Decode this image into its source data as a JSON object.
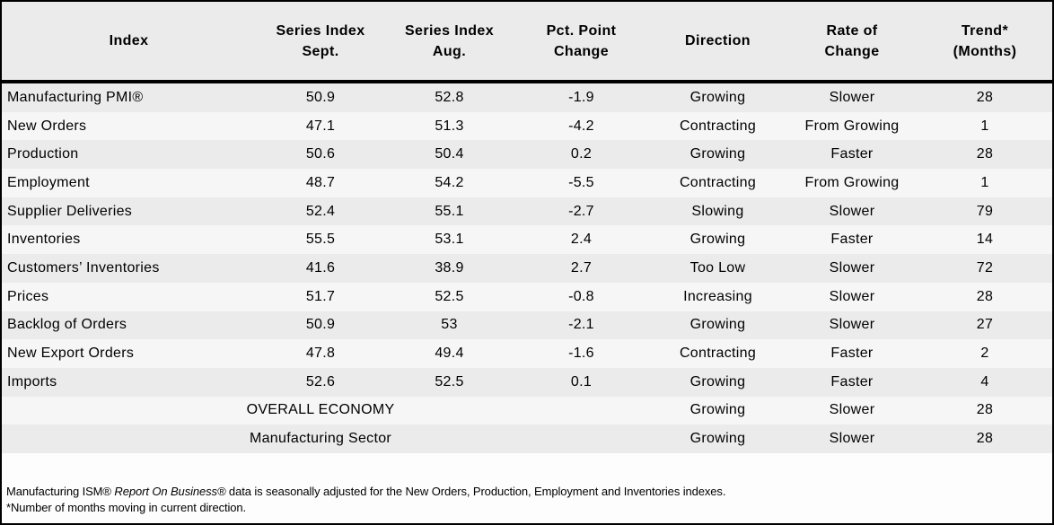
{
  "chart_data": {
    "type": "table",
    "columns": [
      {
        "id": "index",
        "line1": "Index",
        "line2": ""
      },
      {
        "id": "sept",
        "line1": "Series Index",
        "line2": "Sept."
      },
      {
        "id": "aug",
        "line1": "Series Index",
        "line2": "Aug."
      },
      {
        "id": "change",
        "line1": "Pct. Point",
        "line2": "Change"
      },
      {
        "id": "direction",
        "line1": "Direction",
        "line2": ""
      },
      {
        "id": "rate",
        "line1": "Rate of",
        "line2": "Change"
      },
      {
        "id": "trend",
        "line1": "Trend*",
        "line2": "(Months)"
      }
    ],
    "rows": [
      {
        "index": "Manufacturing PMI®",
        "sept": "50.9",
        "aug": "52.8",
        "change": "-1.9",
        "direction": "Growing",
        "rate": "Slower",
        "trend": "28"
      },
      {
        "index": "New Orders",
        "sept": "47.1",
        "aug": "51.3",
        "change": "-4.2",
        "direction": "Contracting",
        "rate": "From Growing",
        "trend": "1"
      },
      {
        "index": "Production",
        "sept": "50.6",
        "aug": "50.4",
        "change": "0.2",
        "direction": "Growing",
        "rate": "Faster",
        "trend": "28"
      },
      {
        "index": "Employment",
        "sept": "48.7",
        "aug": "54.2",
        "change": "-5.5",
        "direction": "Contracting",
        "rate": "From Growing",
        "trend": "1"
      },
      {
        "index": "Supplier Deliveries",
        "sept": "52.4",
        "aug": "55.1",
        "change": "-2.7",
        "direction": "Slowing",
        "rate": "Slower",
        "trend": "79"
      },
      {
        "index": "Inventories",
        "sept": "55.5",
        "aug": "53.1",
        "change": "2.4",
        "direction": "Growing",
        "rate": "Faster",
        "trend": "14"
      },
      {
        "index": "Customers’ Inventories",
        "sept": "41.6",
        "aug": "38.9",
        "change": "2.7",
        "direction": "Too Low",
        "rate": "Slower",
        "trend": "72"
      },
      {
        "index": "Prices",
        "sept": "51.7",
        "aug": "52.5",
        "change": "-0.8",
        "direction": "Increasing",
        "rate": "Slower",
        "trend": "28"
      },
      {
        "index": "Backlog of Orders",
        "sept": "50.9",
        "aug": "53",
        "change": "-2.1",
        "direction": "Growing",
        "rate": "Slower",
        "trend": "27"
      },
      {
        "index": "New Export Orders",
        "sept": "47.8",
        "aug": "49.4",
        "change": "-1.6",
        "direction": "Contracting",
        "rate": "Faster",
        "trend": "2"
      },
      {
        "index": "Imports",
        "sept": "52.6",
        "aug": "52.5",
        "change": "0.1",
        "direction": "Growing",
        "rate": "Faster",
        "trend": "4"
      }
    ],
    "summary_rows": [
      {
        "label": "OVERALL ECONOMY",
        "direction": "Growing",
        "rate": "Slower",
        "trend": "28"
      },
      {
        "label": "Manufacturing Sector",
        "direction": "Growing",
        "rate": "Slower",
        "trend": "28"
      }
    ],
    "footnotes": {
      "line1_prefix": "Manufacturing ISM® ",
      "line1_italic": "Report On Business®",
      "line1_suffix": "  data is seasonally adjusted for the New Orders, Production, Employment and Inventories indexes.",
      "line2": "*Number of months moving in current direction."
    },
    "colors": {
      "border": "#000000",
      "stripe_odd": "#ebebeb",
      "stripe_even": "#f6f6f6",
      "footer_bg": "#fdfdfd",
      "text": "#000000"
    },
    "layout_hints": {
      "grid": "off",
      "legend": "none"
    }
  }
}
